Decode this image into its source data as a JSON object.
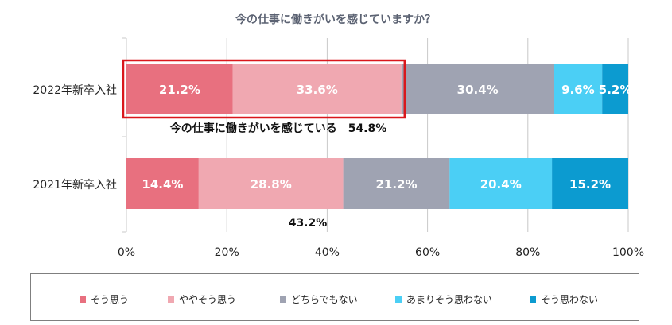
{
  "chart_data": {
    "type": "bar",
    "orientation": "horizontal",
    "stacked": true,
    "title": "今の仕事に働きがいを感じていますか？",
    "categories": [
      "2022年新卒入社",
      "2021年新卒入社"
    ],
    "series": [
      {
        "name": "そう思う",
        "values": [
          21.2,
          14.4
        ],
        "labels": [
          "21.2%",
          "14.4%"
        ],
        "color": "#e8707f"
      },
      {
        "name": "ややそう思う",
        "values": [
          33.6,
          28.8
        ],
        "labels": [
          "33.6%",
          "28.8%"
        ],
        "color": "#f0a8b1"
      },
      {
        "name": "どちらでもない",
        "values": [
          30.4,
          21.2
        ],
        "labels": [
          "30.4%",
          "21.2%"
        ],
        "color": "#9fa3b2"
      },
      {
        "name": "あまりそう思わない",
        "values": [
          9.6,
          20.4
        ],
        "labels": [
          "9.6%",
          "20.4%"
        ],
        "color": "#4bcff5"
      },
      {
        "name": "そう思わない",
        "values": [
          5.2,
          15.2
        ],
        "labels": [
          "5.2%",
          "15.2%"
        ],
        "color": "#0c9bd0"
      }
    ],
    "xlim": [
      0,
      100
    ],
    "xticks": [
      "0%",
      "20%",
      "40%",
      "60%",
      "80%",
      "100%"
    ],
    "xlabel": "",
    "ylabel": "",
    "grid": true,
    "legend_position": "bottom",
    "annotations": [
      {
        "category": 0,
        "text": "今の仕事に働きがいを感じている　54.8%",
        "value": 54.8,
        "highlight": true
      },
      {
        "category": 1,
        "text": "43.2%",
        "value": 43.2,
        "highlight": false
      }
    ]
  },
  "colors": {
    "title": "#5b6272",
    "highlight_box": "#d9171c",
    "grid": "#c8c8c8",
    "axis_text": "#222222",
    "bar_label": "#ffffff"
  }
}
